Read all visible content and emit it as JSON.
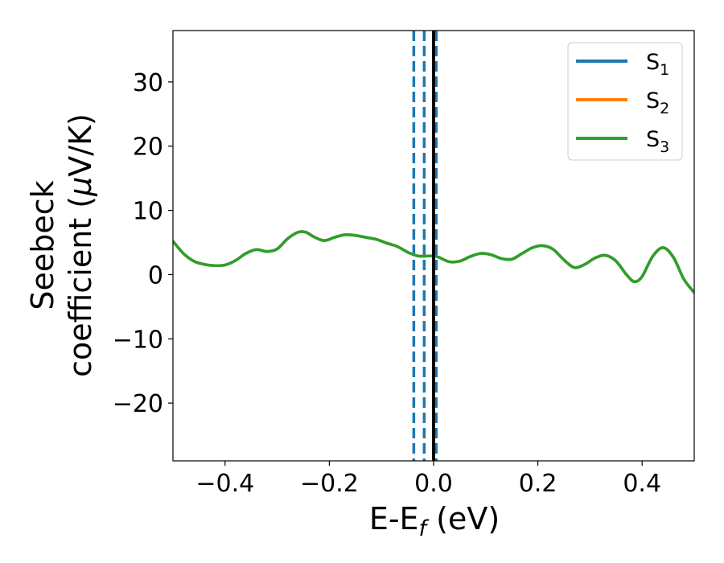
{
  "chart_data": {
    "type": "line",
    "xlabel_main": "E-E",
    "xlabel_sub": "f",
    "xlabel_unit": " (eV)",
    "ylabel_line1": "Seebeck",
    "ylabel_line2_pre": "coefficient  (",
    "ylabel_mu": "μ",
    "ylabel_line2_post": "V/K)",
    "xlim": [
      -0.5,
      0.5
    ],
    "ylim": [
      -29,
      38
    ],
    "xticks": [
      -0.4,
      -0.2,
      0.0,
      0.2,
      0.4
    ],
    "xtick_labels": [
      "−0.4",
      "−0.2",
      "0.0",
      "0.2",
      "0.4"
    ],
    "yticks": [
      -20,
      -10,
      0,
      10,
      20,
      30
    ],
    "ytick_labels": [
      "−20",
      "−10",
      "0",
      "10",
      "20",
      "30"
    ],
    "grid": false,
    "legend_position": "top-right",
    "series": [
      {
        "name": "S",
        "sub": "1",
        "color": "#1f77b4"
      },
      {
        "name": "S",
        "sub": "2",
        "color": "#ff7f0e"
      },
      {
        "name": "S",
        "sub": "3",
        "color": "#2ca02c"
      }
    ],
    "vlines_dashed": {
      "color": "#1f77b4",
      "x": [
        -0.038,
        -0.018,
        0.005
      ]
    },
    "vline_solid": {
      "color": "#000000",
      "x": 0.0
    },
    "x": [
      -0.5,
      -0.48,
      -0.46,
      -0.44,
      -0.42,
      -0.4,
      -0.38,
      -0.36,
      -0.34,
      -0.32,
      -0.3,
      -0.28,
      -0.26,
      -0.245,
      -0.23,
      -0.21,
      -0.19,
      -0.17,
      -0.15,
      -0.13,
      -0.11,
      -0.09,
      -0.07,
      -0.05,
      -0.03,
      -0.01,
      0.0,
      0.01,
      0.03,
      0.05,
      0.07,
      0.09,
      0.11,
      0.13,
      0.15,
      0.17,
      0.19,
      0.21,
      0.23,
      0.25,
      0.27,
      0.29,
      0.31,
      0.33,
      0.35,
      0.37,
      0.385,
      0.4,
      0.42,
      0.44,
      0.46,
      0.48,
      0.5
    ],
    "y": [
      5.2,
      3.3,
      2.1,
      1.6,
      1.4,
      1.5,
      2.2,
      3.3,
      3.9,
      3.6,
      4.0,
      5.6,
      6.6,
      6.6,
      5.9,
      5.3,
      5.8,
      6.2,
      6.1,
      5.8,
      5.5,
      4.9,
      4.4,
      3.5,
      2.9,
      2.9,
      2.9,
      2.7,
      2.0,
      2.1,
      2.8,
      3.3,
      3.1,
      2.5,
      2.4,
      3.3,
      4.2,
      4.5,
      3.9,
      2.3,
      1.1,
      1.6,
      2.6,
      3.0,
      2.1,
      0.0,
      -1.1,
      -0.3,
      2.8,
      4.2,
      2.7,
      -0.7,
      -2.8
    ]
  }
}
